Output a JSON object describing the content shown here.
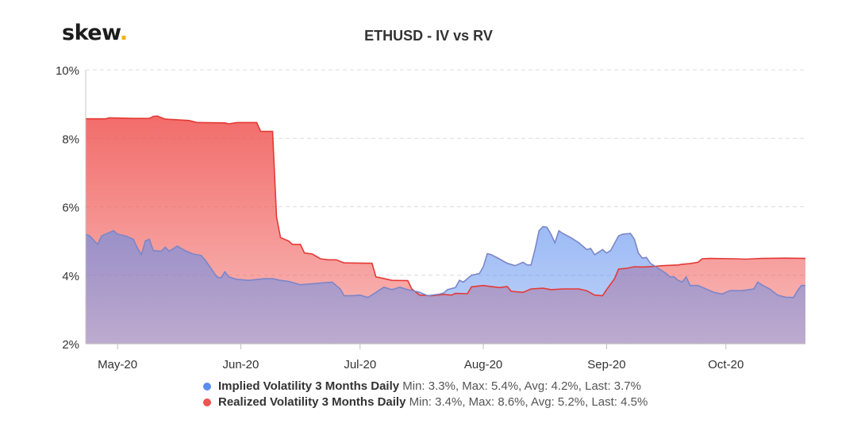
{
  "brand": {
    "name": "skew",
    "dot": "."
  },
  "chart_data": {
    "type": "area",
    "title": "ETHUSD - IV vs RV",
    "xlabel": "",
    "ylabel": "",
    "x_start": "2020-04-23",
    "x_end": "2020-10-21",
    "ylim": [
      2,
      10
    ],
    "yticks": [
      {
        "value": 2,
        "label": "2%"
      },
      {
        "value": 4,
        "label": "4%"
      },
      {
        "value": 6,
        "label": "6%"
      },
      {
        "value": 8,
        "label": "8%"
      },
      {
        "value": 10,
        "label": "10%"
      }
    ],
    "xticks": [
      {
        "day": 8,
        "label": "May-20"
      },
      {
        "day": 39,
        "label": "Jun-20"
      },
      {
        "day": 69,
        "label": "Jul-20"
      },
      {
        "day": 100,
        "label": "Aug-20"
      },
      {
        "day": 131,
        "label": "Sep-20"
      },
      {
        "day": 161,
        "label": "Oct-20"
      }
    ],
    "series": [
      {
        "name": "Realized Volatility 3 Months Daily",
        "stats": "Min: 3.4%, Max: 8.6%, Avg: 5.2%, Last: 4.5%",
        "color": "#ef5350",
        "points": [
          [
            0,
            8.57
          ],
          [
            5,
            8.57
          ],
          [
            6,
            8.6
          ],
          [
            12,
            8.58
          ],
          [
            16,
            8.58
          ],
          [
            17,
            8.64
          ],
          [
            18,
            8.65
          ],
          [
            20,
            8.56
          ],
          [
            26,
            8.52
          ],
          [
            28,
            8.46
          ],
          [
            35,
            8.45
          ],
          [
            36,
            8.42
          ],
          [
            38,
            8.46
          ],
          [
            43,
            8.46
          ],
          [
            44,
            8.2
          ],
          [
            47,
            8.2
          ],
          [
            48,
            5.7
          ],
          [
            49,
            5.1
          ],
          [
            51,
            5.0
          ],
          [
            52,
            4.9
          ],
          [
            54,
            4.9
          ],
          [
            55,
            4.65
          ],
          [
            57,
            4.62
          ],
          [
            59,
            4.48
          ],
          [
            61,
            4.45
          ],
          [
            63,
            4.45
          ],
          [
            65,
            4.36
          ],
          [
            72,
            4.35
          ],
          [
            73,
            3.95
          ],
          [
            74,
            3.93
          ],
          [
            77,
            3.85
          ],
          [
            81,
            3.84
          ],
          [
            82,
            3.6
          ],
          [
            84,
            3.42
          ],
          [
            87,
            3.4
          ],
          [
            90,
            3.44
          ],
          [
            92,
            3.42
          ],
          [
            93,
            3.47
          ],
          [
            96,
            3.46
          ],
          [
            97,
            3.66
          ],
          [
            100,
            3.7
          ],
          [
            104,
            3.64
          ],
          [
            106,
            3.67
          ],
          [
            107,
            3.53
          ],
          [
            110,
            3.5
          ],
          [
            112,
            3.6
          ],
          [
            115,
            3.62
          ],
          [
            117,
            3.58
          ],
          [
            120,
            3.6
          ],
          [
            124,
            3.6
          ],
          [
            126,
            3.55
          ],
          [
            128,
            3.42
          ],
          [
            130,
            3.4
          ],
          [
            131,
            3.58
          ],
          [
            133,
            3.9
          ],
          [
            134,
            4.18
          ],
          [
            136,
            4.2
          ],
          [
            138,
            4.25
          ],
          [
            140,
            4.24
          ],
          [
            143,
            4.26
          ],
          [
            145,
            4.28
          ],
          [
            149,
            4.3
          ],
          [
            150,
            4.32
          ],
          [
            152,
            4.34
          ],
          [
            154,
            4.38
          ],
          [
            155,
            4.48
          ],
          [
            157,
            4.49
          ],
          [
            163,
            4.48
          ],
          [
            166,
            4.47
          ],
          [
            168,
            4.48
          ],
          [
            170,
            4.49
          ],
          [
            176,
            4.5
          ],
          [
            181,
            4.49
          ]
        ]
      },
      {
        "name": "Implied Volatility 3 Months Daily",
        "stats": "Min: 3.3%, Max: 5.4%, Avg: 4.2%, Last: 3.7%",
        "color": "#5b8dee",
        "points": [
          [
            0,
            5.2
          ],
          [
            1,
            5.15
          ],
          [
            3,
            4.9
          ],
          [
            4,
            5.15
          ],
          [
            6,
            5.25
          ],
          [
            7,
            5.3
          ],
          [
            8,
            5.2
          ],
          [
            10,
            5.15
          ],
          [
            12,
            5.05
          ],
          [
            13,
            4.8
          ],
          [
            14,
            4.6
          ],
          [
            15,
            5.0
          ],
          [
            16,
            5.05
          ],
          [
            17,
            4.72
          ],
          [
            19,
            4.7
          ],
          [
            20,
            4.82
          ],
          [
            21,
            4.7
          ],
          [
            23,
            4.85
          ],
          [
            25,
            4.72
          ],
          [
            27,
            4.62
          ],
          [
            29,
            4.58
          ],
          [
            30,
            4.45
          ],
          [
            33,
            3.95
          ],
          [
            34,
            3.92
          ],
          [
            35,
            4.1
          ],
          [
            36,
            3.95
          ],
          [
            38,
            3.88
          ],
          [
            41,
            3.85
          ],
          [
            45,
            3.9
          ],
          [
            47,
            3.9
          ],
          [
            49,
            3.85
          ],
          [
            51,
            3.82
          ],
          [
            54,
            3.72
          ],
          [
            60,
            3.78
          ],
          [
            62,
            3.8
          ],
          [
            64,
            3.6
          ],
          [
            65,
            3.4
          ],
          [
            67,
            3.4
          ],
          [
            69,
            3.42
          ],
          [
            71,
            3.35
          ],
          [
            73,
            3.5
          ],
          [
            75,
            3.65
          ],
          [
            77,
            3.58
          ],
          [
            79,
            3.65
          ],
          [
            81,
            3.58
          ],
          [
            84,
            3.5
          ],
          [
            86,
            3.4
          ],
          [
            89,
            3.45
          ],
          [
            90,
            3.48
          ],
          [
            91,
            3.58
          ],
          [
            93,
            3.64
          ],
          [
            94,
            3.85
          ],
          [
            95,
            3.8
          ],
          [
            97,
            4.0
          ],
          [
            99,
            4.05
          ],
          [
            100,
            4.25
          ],
          [
            101,
            4.63
          ],
          [
            102,
            4.6
          ],
          [
            104,
            4.48
          ],
          [
            106,
            4.35
          ],
          [
            108,
            4.28
          ],
          [
            110,
            4.38
          ],
          [
            111,
            4.3
          ],
          [
            112,
            4.3
          ],
          [
            113,
            4.75
          ],
          [
            114,
            5.3
          ],
          [
            115,
            5.42
          ],
          [
            116,
            5.4
          ],
          [
            117,
            5.2
          ],
          [
            118,
            4.95
          ],
          [
            119,
            5.3
          ],
          [
            120,
            5.22
          ],
          [
            122,
            5.1
          ],
          [
            124,
            4.95
          ],
          [
            126,
            4.75
          ],
          [
            127,
            4.78
          ],
          [
            128,
            4.6
          ],
          [
            130,
            4.75
          ],
          [
            131,
            4.65
          ],
          [
            132,
            4.72
          ],
          [
            134,
            5.15
          ],
          [
            135,
            5.2
          ],
          [
            137,
            5.22
          ],
          [
            138,
            5.05
          ],
          [
            139,
            4.65
          ],
          [
            140,
            4.5
          ],
          [
            141,
            4.52
          ],
          [
            142,
            4.35
          ],
          [
            144,
            4.2
          ],
          [
            146,
            4.05
          ],
          [
            147,
            3.95
          ],
          [
            148,
            3.95
          ],
          [
            149,
            3.85
          ],
          [
            150,
            3.8
          ],
          [
            151,
            3.95
          ],
          [
            152,
            3.7
          ],
          [
            154,
            3.7
          ],
          [
            156,
            3.6
          ],
          [
            158,
            3.5
          ],
          [
            160,
            3.45
          ],
          [
            162,
            3.55
          ],
          [
            165,
            3.55
          ],
          [
            168,
            3.6
          ],
          [
            169,
            3.8
          ],
          [
            170,
            3.72
          ],
          [
            172,
            3.6
          ],
          [
            174,
            3.42
          ],
          [
            176,
            3.36
          ],
          [
            178,
            3.35
          ],
          [
            179,
            3.55
          ],
          [
            180,
            3.7
          ],
          [
            181,
            3.7
          ]
        ]
      }
    ],
    "legend_position": "bottom"
  }
}
